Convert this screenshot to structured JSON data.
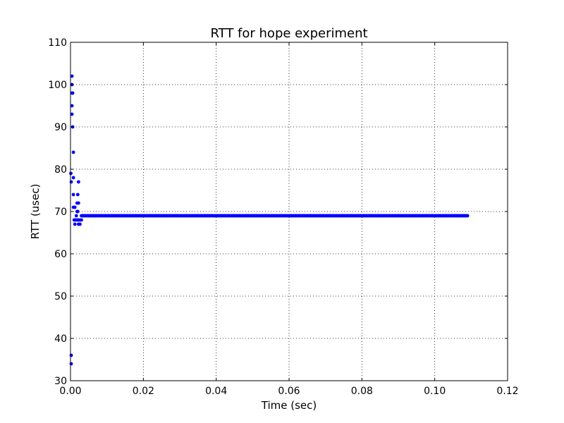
{
  "chart_data": {
    "type": "scatter",
    "title": "RTT for hope experiment",
    "xlabel": "Time (sec)",
    "ylabel": "RTT (usec)",
    "xlim": [
      0.0,
      0.12
    ],
    "ylim": [
      30,
      110
    ],
    "xticks": [
      "0.00",
      "0.02",
      "0.04",
      "0.06",
      "0.08",
      "0.10",
      "0.12"
    ],
    "yticks": [
      "30",
      "40",
      "50",
      "60",
      "70",
      "80",
      "90",
      "100",
      "110"
    ],
    "grid": true,
    "colors": {
      "points": "#0000ff",
      "grid": "#000000",
      "axes": "#000000"
    },
    "series": [
      {
        "points": [
          [
            0.0002,
            34
          ],
          [
            0.0002,
            36
          ],
          [
            0.0001,
            79
          ],
          [
            0.0002,
            77
          ],
          [
            0.0004,
            102
          ],
          [
            0.0004,
            100
          ],
          [
            0.0004,
            98
          ],
          [
            0.0006,
            98
          ],
          [
            0.0004,
            95
          ],
          [
            0.0004,
            93
          ],
          [
            0.0006,
            90
          ],
          [
            0.0008,
            84
          ],
          [
            0.0008,
            78
          ],
          [
            0.0008,
            74
          ],
          [
            0.0008,
            71
          ],
          [
            0.0012,
            71
          ],
          [
            0.001,
            68
          ],
          [
            0.0014,
            68
          ],
          [
            0.0018,
            68
          ],
          [
            0.0022,
            68
          ],
          [
            0.0026,
            68
          ],
          [
            0.003,
            68
          ],
          [
            0.0012,
            67
          ],
          [
            0.0022,
            67
          ],
          [
            0.0026,
            67
          ],
          [
            0.0016,
            69
          ],
          [
            0.0018,
            70
          ],
          [
            0.002,
            70
          ],
          [
            0.0018,
            72
          ],
          [
            0.0022,
            72
          ],
          [
            0.002,
            74
          ],
          [
            0.0022,
            77
          ]
        ],
        "run": {
          "y": 69,
          "x_start": 0.003,
          "x_end": 0.109,
          "step": 0.00025
        }
      }
    ]
  }
}
